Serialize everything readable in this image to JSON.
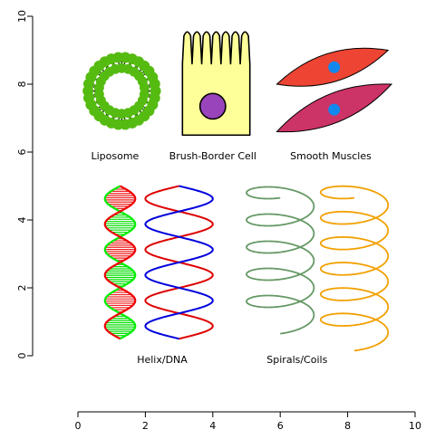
{
  "chart_data": {
    "type": "scatter",
    "title": "",
    "xlabel": "",
    "ylabel": "",
    "xlim": [
      0,
      10
    ],
    "ylim": [
      0,
      10
    ],
    "x_ticks": [
      0,
      2,
      4,
      6,
      8,
      10
    ],
    "y_ticks": [
      0,
      2,
      4,
      6,
      8,
      10
    ],
    "x_tick_labels": [
      "0",
      "2",
      "4",
      "6",
      "8",
      "10"
    ],
    "y_tick_labels": [
      "0",
      "2",
      "4",
      "6",
      "8",
      "10"
    ],
    "grid": false,
    "legend": "none",
    "annotations": [
      {
        "id": "liposome",
        "text": "Liposome",
        "x": 1.1,
        "y": 5.9
      },
      {
        "id": "brush",
        "text": "Brush-Border Cell",
        "x": 4.0,
        "y": 5.9
      },
      {
        "id": "muscle",
        "text": "Smooth Muscles",
        "x": 7.5,
        "y": 5.9
      },
      {
        "id": "helix",
        "text": "Helix/DNA",
        "x": 2.5,
        "y": -0.1
      },
      {
        "id": "spiral",
        "text": "Spirals/Coils",
        "x": 6.5,
        "y": -0.1
      }
    ],
    "shapes": {
      "liposome": {
        "center": [
          1.3,
          7.8
        ],
        "outer_ring_radius": 1.0,
        "inner_ring_radius": 0.68,
        "bead_count_outer": 30,
        "bead_count_inner": 22,
        "color": "#55bb11"
      },
      "brush_border_cell": {
        "body": {
          "x0": 3.1,
          "x1": 5.1,
          "y0": 6.5,
          "y1": 8.6
        },
        "microvilli_count": 7,
        "microvilli_top": 9.5,
        "fill": "#ffff99",
        "nucleus": {
          "x": 4.0,
          "y": 7.35,
          "r": 0.38,
          "color": "#9944bb"
        }
      },
      "smooth_muscles": [
        {
          "from": [
            5.9,
            8.0
          ],
          "to": [
            9.2,
            9.0
          ],
          "width": 0.85,
          "color": "#ee4433",
          "nucleus": [
            7.6,
            8.5
          ]
        },
        {
          "from": [
            5.9,
            6.6
          ],
          "to": [
            9.3,
            8.0
          ],
          "width": 0.85,
          "color": "#cc3366",
          "nucleus": [
            7.6,
            7.25
          ]
        }
      ],
      "nucleus_color": "#1188ee",
      "dna_helix": {
        "x_center": 1.25,
        "amplitude": 0.45,
        "y0": 0.5,
        "y1": 5.0,
        "turns": 3,
        "colors": [
          "#00ee00",
          "#ee0000"
        ],
        "rung_colors": [
          "#00dd00",
          "#ee2222"
        ]
      },
      "helix": {
        "x_center": 3.0,
        "amplitude": 1.0,
        "y0": 0.5,
        "y1": 5.0,
        "turns": 3,
        "colors": [
          "#dd0000",
          "#0000dd"
        ]
      },
      "spirals": [
        {
          "x_center": 6.0,
          "y_center": 2.75,
          "radius": 1.0,
          "y0": 1.0,
          "y1": 5.0,
          "loops": 5,
          "color": "#669966"
        },
        {
          "x_center": 8.2,
          "y_center": 2.75,
          "radius": 1.0,
          "y0": 0.5,
          "y1": 5.0,
          "loops": 6,
          "color": "#f2a000"
        }
      ]
    }
  }
}
